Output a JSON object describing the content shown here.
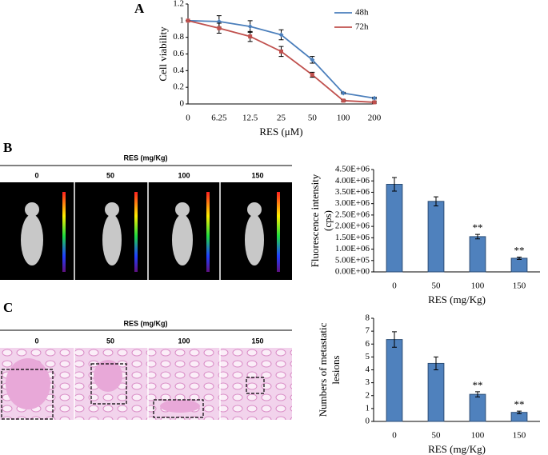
{
  "panels": {
    "labels": [
      "A",
      "B",
      "C"
    ],
    "image_strips": [
      {
        "header": "RES (mg/Kg)",
        "columns": [
          "0",
          "50",
          "100",
          "150"
        ]
      },
      {
        "header": "RES (mg/Kg)",
        "columns": [
          "0",
          "50",
          "100",
          "150"
        ]
      }
    ]
  },
  "chart_data": [
    {
      "type": "line",
      "ylabel": "Cell viability",
      "xlabel": "RES (μM)",
      "categories": [
        "0",
        "6.25",
        "12.5",
        "25",
        "50",
        "100",
        "200"
      ],
      "ylim": [
        0,
        1.2
      ],
      "yticks": [
        0,
        0.2,
        0.4,
        0.6,
        0.8,
        1,
        1.2
      ],
      "legend": "upper right",
      "series": [
        {
          "name": "48h",
          "color": "#4a7ebb",
          "marker": "diamond",
          "values": [
            1,
            0.99,
            0.93,
            0.83,
            0.53,
            0.13,
            0.07
          ],
          "errors": [
            0,
            0.07,
            0.07,
            0.06,
            0.04,
            0.01,
            0.01
          ]
        },
        {
          "name": "72h",
          "color": "#c0504d",
          "marker": "square",
          "values": [
            1,
            0.91,
            0.81,
            0.63,
            0.35,
            0.04,
            0.02
          ],
          "errors": [
            0,
            0.06,
            0.06,
            0.06,
            0.03,
            0.01,
            0.01
          ]
        }
      ]
    },
    {
      "type": "bar",
      "ylabel": [
        "Fluorescence intensity",
        "(cps)"
      ],
      "xlabel": "RES (mg/Kg)",
      "categories": [
        "0",
        "50",
        "100",
        "150"
      ],
      "color": "#4f81bd",
      "values": [
        3850000,
        3100000,
        1550000,
        600000
      ],
      "errors": [
        300000,
        200000,
        100000,
        50000
      ],
      "significance": [
        null,
        null,
        "**",
        "**"
      ],
      "ylim": [
        0,
        4500000
      ],
      "yticks": [
        {
          "value": 0,
          "label": "0.00E+00"
        },
        {
          "value": 500000,
          "label": "5.00E+05"
        },
        {
          "value": 1000000,
          "label": "1.00E+06"
        },
        {
          "value": 1500000,
          "label": "1.50E+06"
        },
        {
          "value": 2000000,
          "label": "2.00E+06"
        },
        {
          "value": 2500000,
          "label": "2.50E+06"
        },
        {
          "value": 3000000,
          "label": "3.00E+06"
        },
        {
          "value": 3500000,
          "label": "3.50E+06"
        },
        {
          "value": 4000000,
          "label": "4.00E+06"
        },
        {
          "value": 4500000,
          "label": "4.50E+06"
        }
      ]
    },
    {
      "type": "bar",
      "ylabel": [
        "Numbers of metastatic",
        "lesions"
      ],
      "xlabel": "RES (mg/Kg)",
      "categories": [
        "0",
        "50",
        "100",
        "150"
      ],
      "color": "#4f81bd",
      "values": [
        6.35,
        4.5,
        2.1,
        0.7
      ],
      "errors": [
        0.6,
        0.5,
        0.2,
        0.1
      ],
      "significance": [
        null,
        null,
        "**",
        "**"
      ],
      "ylim": [
        0,
        8
      ],
      "yticks": [
        0,
        1,
        2,
        3,
        4,
        5,
        6,
        7,
        8
      ]
    }
  ]
}
